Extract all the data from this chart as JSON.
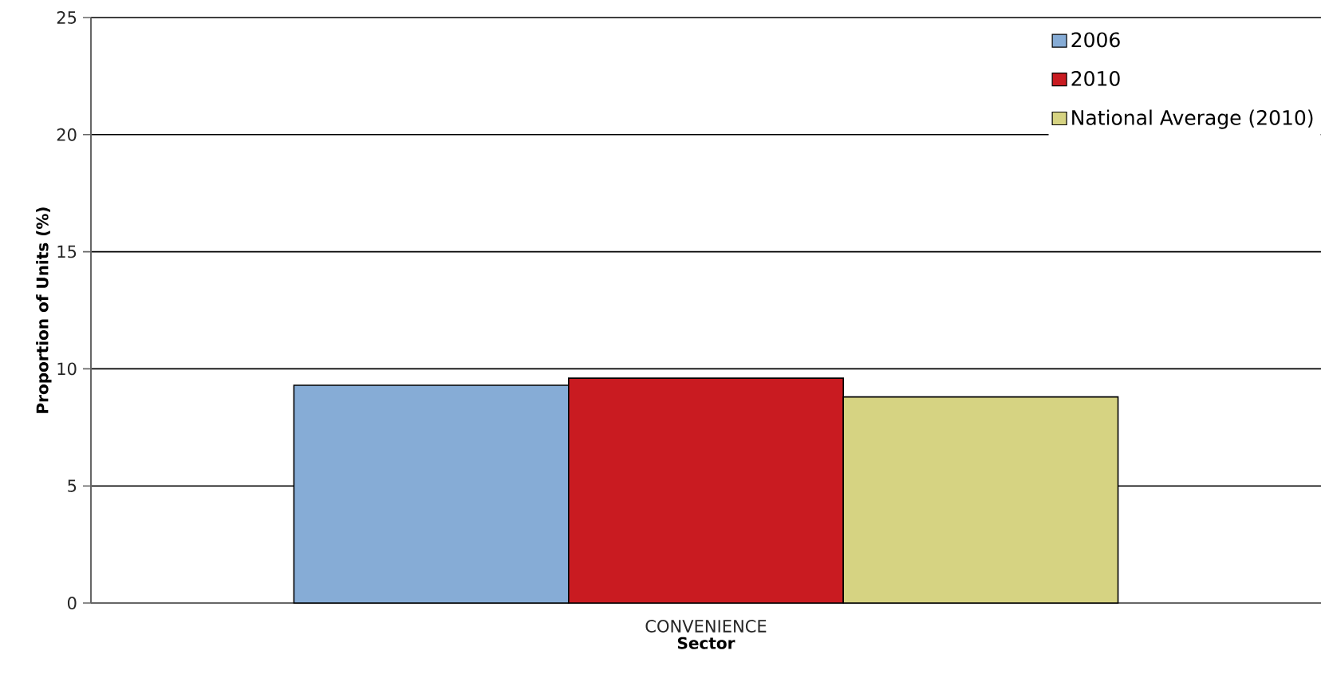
{
  "chart_data": {
    "type": "bar",
    "categories": [
      "CONVENIENCE"
    ],
    "series": [
      {
        "name": "2006",
        "color": "#86acd6",
        "values": [
          9.3
        ]
      },
      {
        "name": "2010",
        "color": "#c91b21",
        "values": [
          9.6
        ]
      },
      {
        "name": "National Average (2010)",
        "color": "#d6d382",
        "values": [
          8.8
        ]
      }
    ],
    "xlabel": "Sector",
    "ylabel": "Proportion of Units (%)",
    "ylim": [
      0,
      25
    ],
    "yticks": [
      0,
      5,
      10,
      15,
      20,
      25
    ],
    "grid": "y",
    "legend": "top right"
  }
}
